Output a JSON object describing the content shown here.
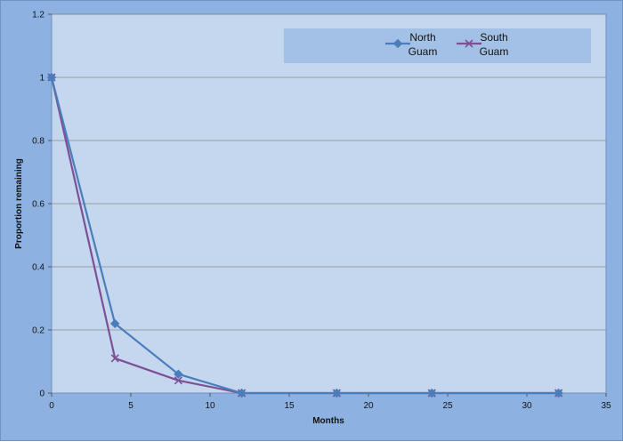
{
  "chart_data": {
    "type": "line",
    "title": "",
    "xlabel": "Months",
    "ylabel": "Proportion remaining",
    "xlim": [
      0,
      35
    ],
    "ylim": [
      0,
      1.2
    ],
    "x_ticks": [
      0,
      5,
      10,
      15,
      20,
      25,
      30,
      35
    ],
    "y_ticks": [
      0,
      0.2,
      0.4,
      0.6,
      0.8,
      1,
      1.2
    ],
    "x_tick_labels": [
      "0",
      "5",
      "10",
      "15",
      "20",
      "25",
      "30",
      "35"
    ],
    "y_tick_labels": [
      "0",
      "0.2",
      "0.4",
      "0.6",
      "0.8",
      "1",
      "1.2"
    ],
    "grid": "horizontal",
    "legend_position": "top-right",
    "series": [
      {
        "name_lines": [
          "North",
          "Guam"
        ],
        "color": "#4a7ebb",
        "marker": "diamond",
        "x": [
          0,
          4,
          8,
          12,
          18,
          24,
          32
        ],
        "y": [
          1.0,
          0.22,
          0.06,
          0.0,
          0.0,
          0.0,
          0.0
        ]
      },
      {
        "name_lines": [
          "South",
          "Guam"
        ],
        "color": "#7d4f95",
        "marker": "x",
        "x": [
          0,
          4,
          8,
          12,
          18,
          24,
          32
        ],
        "y": [
          1.0,
          0.11,
          0.04,
          0.0,
          0.0,
          0.0,
          0.0
        ]
      }
    ]
  }
}
